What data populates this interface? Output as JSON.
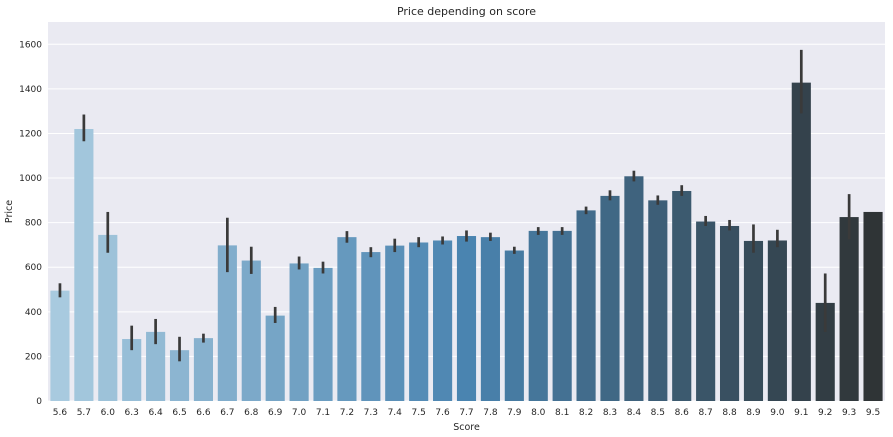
{
  "chart_data": {
    "type": "bar",
    "title": "Price depending on score",
    "xlabel": "Score",
    "ylabel": "Price",
    "ylim": [
      0,
      1700
    ],
    "yticks": [
      0,
      200,
      400,
      600,
      800,
      1000,
      1200,
      1400,
      1600
    ],
    "grid": true,
    "legend": "none",
    "palette_light": "#a8cadf",
    "palette_mid": "#4a84b0",
    "palette_dark": "#2f3436",
    "background": "#eaeaf2",
    "gridcolor": "#ffffff",
    "errorbar_color": "#3a3a3a",
    "categories": [
      "5.6",
      "5.7",
      "6.0",
      "6.3",
      "6.4",
      "6.5",
      "6.6",
      "6.7",
      "6.8",
      "6.9",
      "7.0",
      "7.1",
      "7.2",
      "7.3",
      "7.4",
      "7.5",
      "7.6",
      "7.7",
      "7.8",
      "7.9",
      "8.0",
      "8.1",
      "8.2",
      "8.3",
      "8.4",
      "8.5",
      "8.6",
      "8.7",
      "8.8",
      "8.9",
      "9.0",
      "9.1",
      "9.2",
      "9.3",
      "9.5"
    ],
    "values": [
      495,
      1220,
      745,
      278,
      310,
      228,
      282,
      698,
      630,
      383,
      617,
      597,
      735,
      668,
      697,
      711,
      720,
      740,
      735,
      675,
      763,
      763,
      855,
      920,
      1008,
      900,
      942,
      805,
      785,
      718,
      720,
      1428,
      440,
      825,
      848
    ],
    "err_low": [
      465,
      1165,
      665,
      228,
      255,
      178,
      262,
      578,
      570,
      350,
      590,
      572,
      710,
      645,
      668,
      690,
      702,
      715,
      718,
      660,
      745,
      745,
      838,
      900,
      985,
      880,
      920,
      785,
      765,
      665,
      690,
      1290,
      310,
      725,
      848
    ],
    "err_high": [
      528,
      1285,
      848,
      338,
      368,
      288,
      302,
      822,
      692,
      422,
      648,
      625,
      762,
      690,
      728,
      735,
      738,
      765,
      755,
      692,
      780,
      780,
      872,
      945,
      1033,
      922,
      968,
      830,
      812,
      792,
      768,
      1575,
      572,
      928,
      848
    ]
  }
}
